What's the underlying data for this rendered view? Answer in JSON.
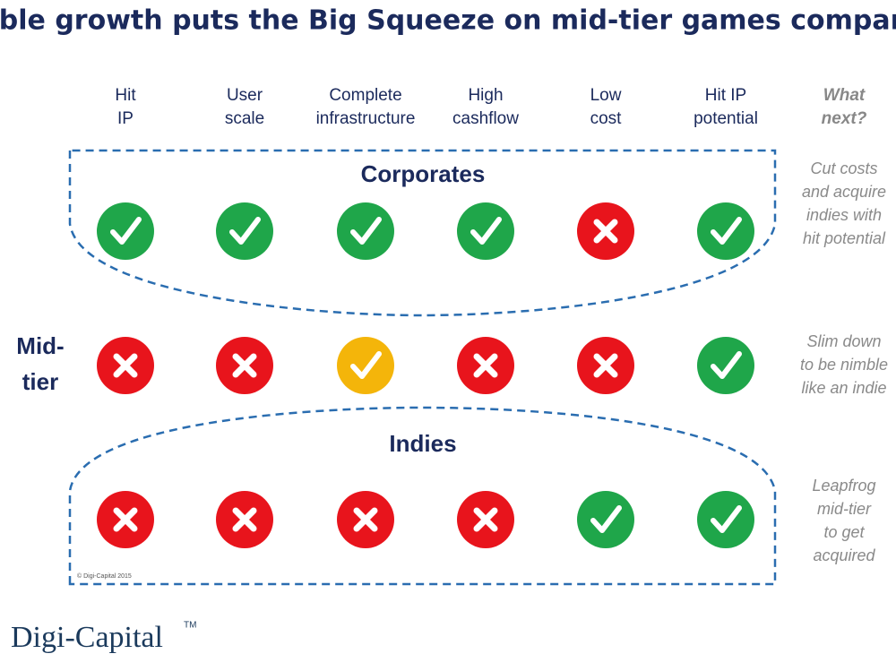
{
  "title": "Stable growth puts the Big Squeeze on mid-tier games companies",
  "headers": [
    [
      "Hit",
      "IP"
    ],
    [
      "User",
      "scale"
    ],
    [
      "Complete",
      "infrastructure"
    ],
    [
      "High",
      "cashflow"
    ],
    [
      "Low",
      "cost"
    ],
    [
      "Hit IP",
      "potential"
    ]
  ],
  "next_header": [
    "What",
    "next?"
  ],
  "rows": [
    {
      "label": [
        "Corporates"
      ],
      "status": [
        "yes",
        "yes",
        "yes",
        "yes",
        "no",
        "yes"
      ],
      "next": [
        "Cut costs",
        "and acquire",
        "indies with",
        "hit potential"
      ]
    },
    {
      "label": [
        "Mid-",
        "tier"
      ],
      "status": [
        "no",
        "no",
        "partial",
        "no",
        "no",
        "yes"
      ],
      "next": [
        "Slim down",
        "to be nimble",
        "like an indie"
      ]
    },
    {
      "label": [
        "Indies"
      ],
      "status": [
        "no",
        "no",
        "no",
        "no",
        "yes",
        "yes"
      ],
      "next": [
        "Leapfrog",
        "mid-tier",
        "to get",
        "acquired"
      ]
    }
  ],
  "copyright": "© Digi-Capital 2015",
  "logo": "Digi-Capital",
  "trademark": "TM"
}
